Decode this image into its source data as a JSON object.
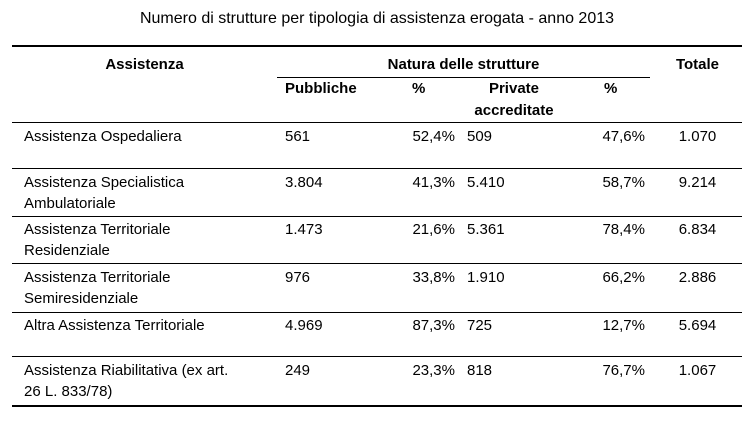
{
  "title": "Numero di strutture per tipologia di assistenza erogata - anno 2013",
  "header": {
    "assistenza": "Assistenza",
    "natura": "Natura delle strutture",
    "totale": "Totale",
    "pubbliche": "Pubbliche",
    "pct1": "%",
    "private_line1": "Private",
    "private_line2": "accreditate",
    "pct2": "%"
  },
  "rows": [
    {
      "label_line1": "Assistenza Ospedaliera",
      "label_line2": "",
      "pubbliche": "561",
      "pct_pub": "52,4%",
      "private": "509",
      "pct_priv": "47,6%",
      "totale": "1.070"
    },
    {
      "label_line1": "Assistenza Specialistica",
      "label_line2": "Ambulatoriale",
      "pubbliche": "3.804",
      "pct_pub": "41,3%",
      "private": "5.410",
      "pct_priv": "58,7%",
      "totale": "9.214"
    },
    {
      "label_line1": "Assistenza Territoriale",
      "label_line2": "Residenziale",
      "pubbliche": "1.473",
      "pct_pub": "21,6%",
      "private": "5.361",
      "pct_priv": "78,4%",
      "totale": "6.834"
    },
    {
      "label_line1": "Assistenza Territoriale",
      "label_line2": "Semiresidenziale",
      "pubbliche": "976",
      "pct_pub": "33,8%",
      "private": "1.910",
      "pct_priv": "66,2%",
      "totale": "2.886"
    },
    {
      "label_line1": "Altra Assistenza Territoriale",
      "label_line2": "",
      "pubbliche": "4.969",
      "pct_pub": "87,3%",
      "private": "725",
      "pct_priv": "12,7%",
      "totale": "5.694"
    },
    {
      "label_line1": "Assistenza Riabilitativa (ex art.",
      "label_line2": "26 L. 833/78)",
      "pubbliche": "249",
      "pct_pub": "23,3%",
      "private": "818",
      "pct_priv": "76,7%",
      "totale": "1.067"
    }
  ]
}
